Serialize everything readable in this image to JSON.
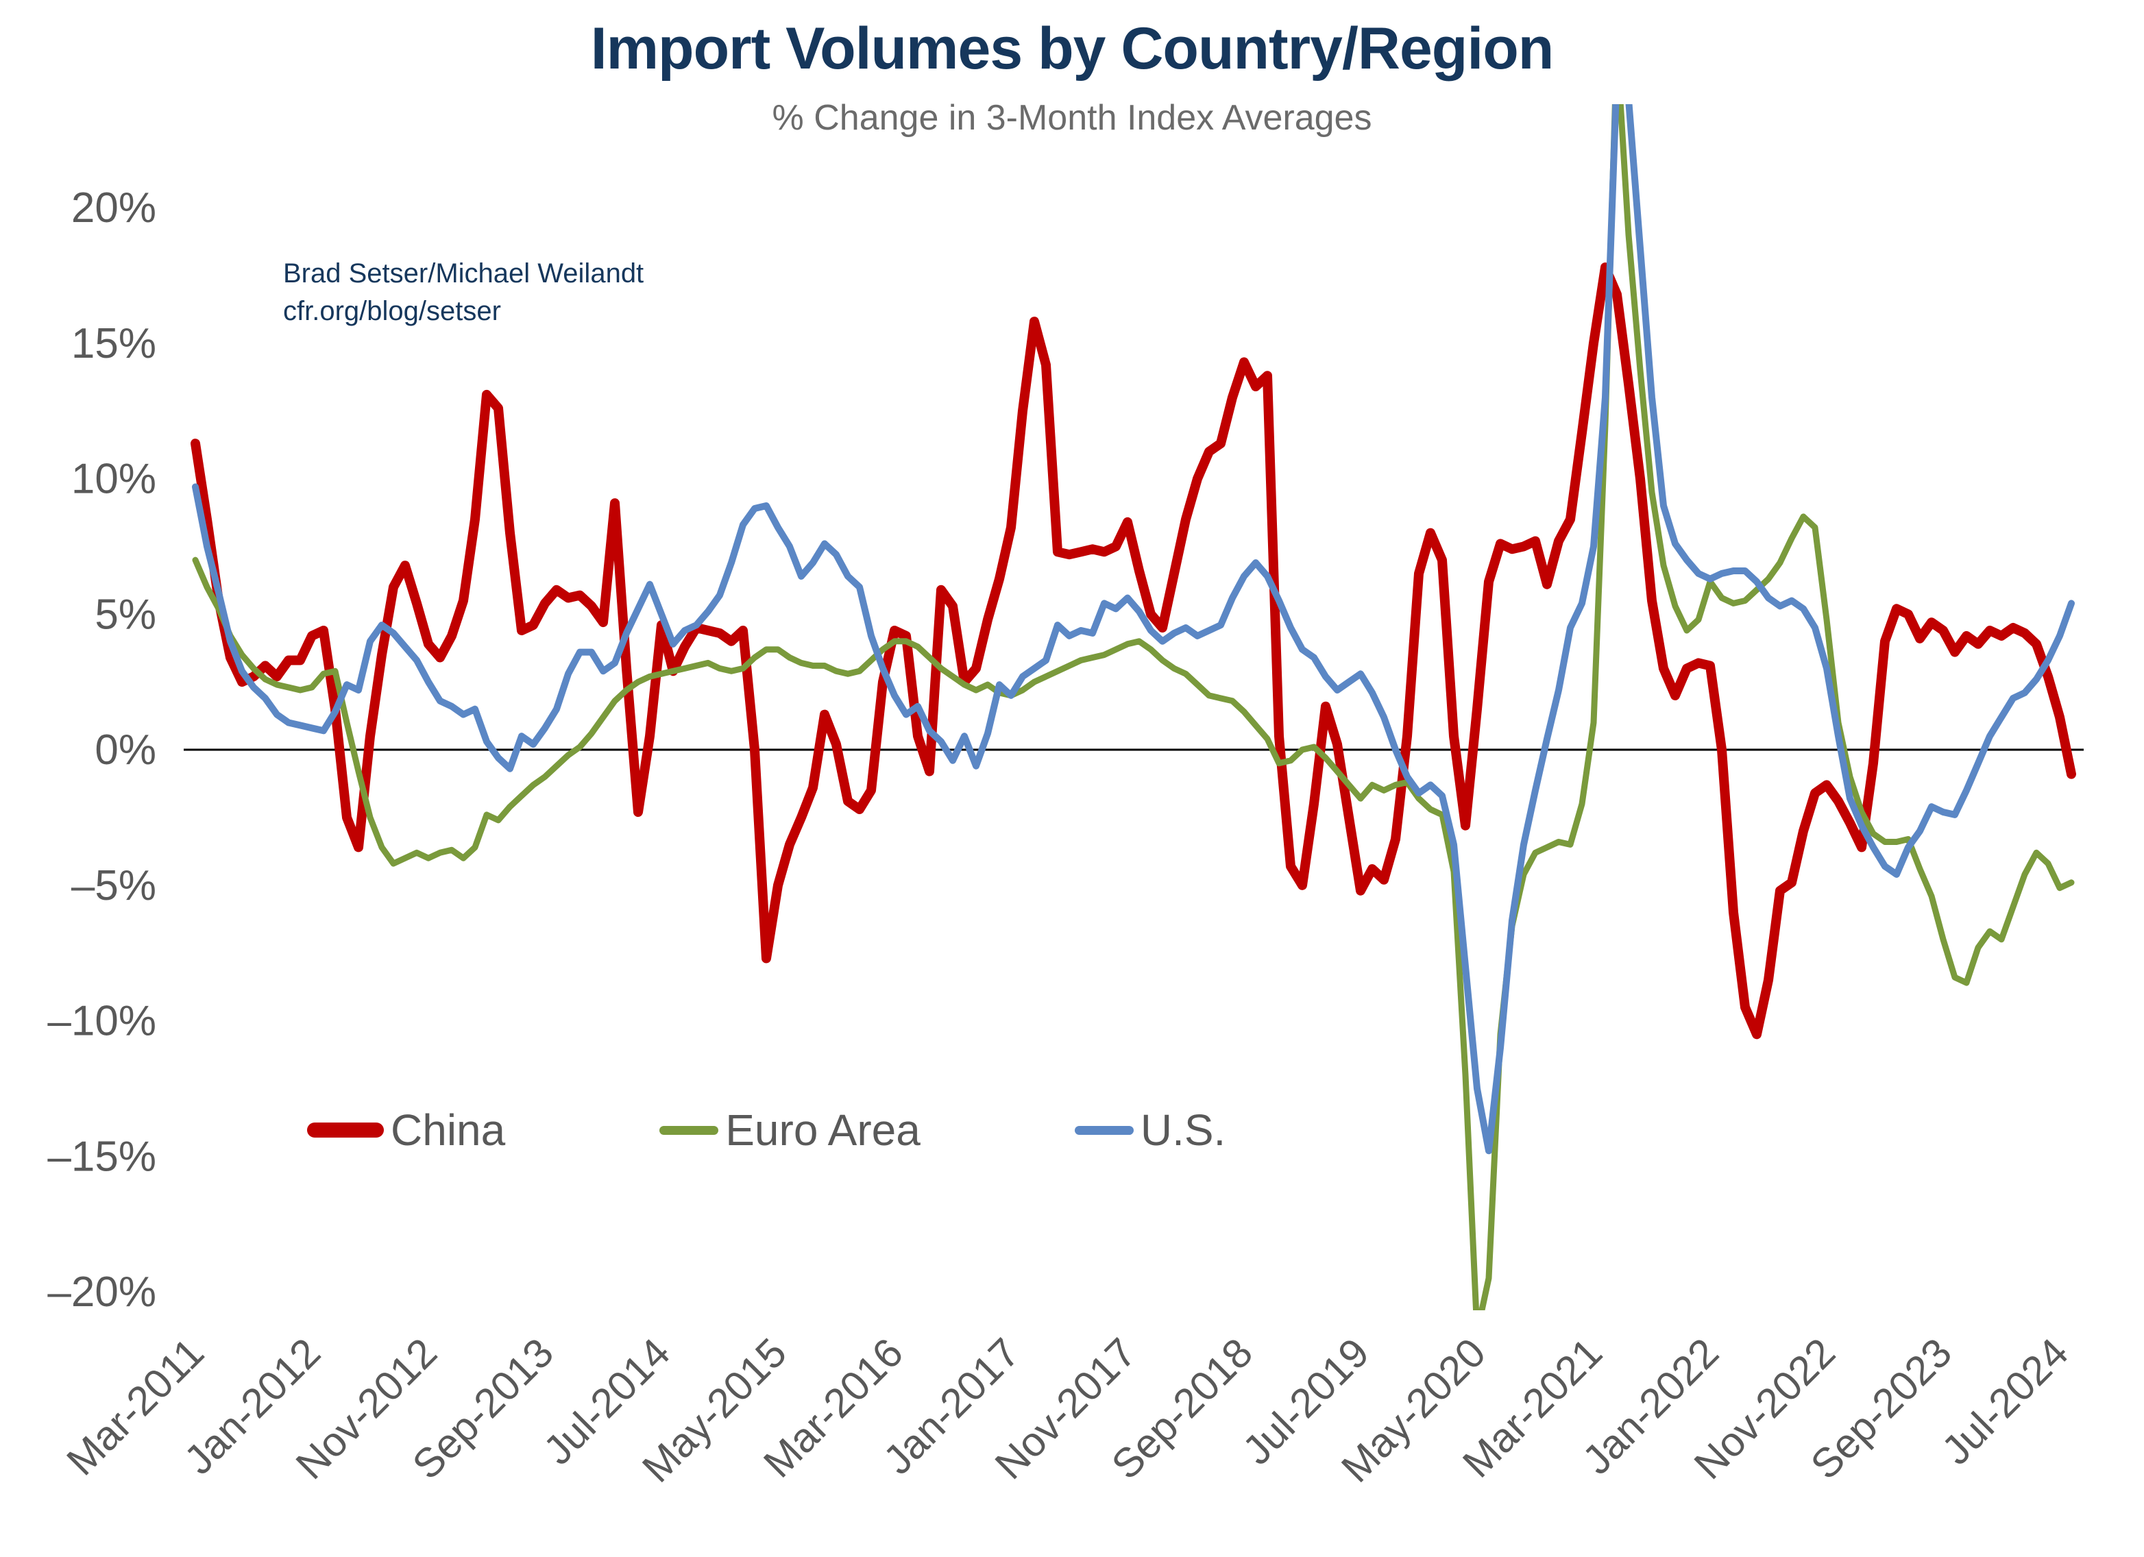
{
  "page": {
    "title": "Import Volumes by Country/Region",
    "subtitle": "% Change in 3-Month Index Averages",
    "annotation_line1": "Brad Setser/Michael Weilandt",
    "annotation_line2": "cfr.org/blog/setser"
  },
  "colors": {
    "china": "#C00000",
    "euro_area": "#7A9A3C",
    "us": "#5B87C5",
    "title_navy": "#16375C",
    "axis_text_gray": "#595959",
    "zero_axis": "#000000"
  },
  "chart_data": {
    "type": "line",
    "title": "Import Volumes by Country/Region",
    "subtitle": "% Change in 3-Month Index Averages",
    "x_start": "Mar-2011",
    "x_end": "Aug-2024",
    "frequency": "monthly",
    "ylim": [
      -20,
      20
    ],
    "y_tick_step": 5,
    "grid": false,
    "zero_axis": true,
    "legend_position": "inside-lower-left",
    "clip_note": "U.S. and Euro Area peaks in Apr-Jun 2021 and the Euro Area trough in May 2020 extend beyond the plotted axis range and are clipped",
    "y_ticks": [
      {
        "label": "20%",
        "v": 20
      },
      {
        "label": "15%",
        "v": 15
      },
      {
        "label": "10%",
        "v": 10
      },
      {
        "label": "5%",
        "v": 5
      },
      {
        "label": "0%",
        "v": 0
      },
      {
        "label": "–5%",
        "v": -5
      },
      {
        "label": "–10%",
        "v": -10
      },
      {
        "label": "–15%",
        "v": -15
      },
      {
        "label": "–20%",
        "v": -20
      }
    ],
    "x_ticks": [
      {
        "label": "Mar-2011",
        "i": 0
      },
      {
        "label": "Jan-2012",
        "i": 10
      },
      {
        "label": "Nov-2012",
        "i": 20
      },
      {
        "label": "Sep-2013",
        "i": 30
      },
      {
        "label": "Jul-2014",
        "i": 40
      },
      {
        "label": "May-2015",
        "i": 50
      },
      {
        "label": "Mar-2016",
        "i": 60
      },
      {
        "label": "Jan-2017",
        "i": 70
      },
      {
        "label": "Nov-2017",
        "i": 80
      },
      {
        "label": "Sep-2018",
        "i": 90
      },
      {
        "label": "Jul-2019",
        "i": 100
      },
      {
        "label": "May-2020",
        "i": 110
      },
      {
        "label": "Mar-2021",
        "i": 120
      },
      {
        "label": "Jan-2022",
        "i": 130
      },
      {
        "label": "Nov-2022",
        "i": 140
      },
      {
        "label": "Sep-2023",
        "i": 150
      },
      {
        "label": "Jul-2024",
        "i": 160
      }
    ],
    "series": [
      {
        "name": "China",
        "color": "#C00000",
        "width": 14,
        "values": [
          11.3,
          8.5,
          5.5,
          3.4,
          2.5,
          2.7,
          3.1,
          2.7,
          3.3,
          3.3,
          4.2,
          4.4,
          1.5,
          -2.5,
          -3.6,
          0.5,
          3.5,
          6.0,
          6.8,
          5.4,
          3.9,
          3.4,
          4.2,
          5.5,
          8.5,
          13.1,
          12.6,
          8.0,
          4.4,
          4.6,
          5.4,
          5.9,
          5.6,
          5.7,
          5.3,
          4.7,
          9.1,
          3.0,
          -2.3,
          0.5,
          4.6,
          2.9,
          3.8,
          4.5,
          4.4,
          4.3,
          4.0,
          4.4,
          0.0,
          -7.7,
          -5.0,
          -3.5,
          -2.5,
          -1.4,
          1.3,
          0.2,
          -1.9,
          -2.2,
          -1.5,
          2.5,
          4.4,
          4.2,
          0.5,
          -0.8,
          5.9,
          5.3,
          2.5,
          3.0,
          4.8,
          6.3,
          8.2,
          12.5,
          15.8,
          14.2,
          7.3,
          7.2,
          7.3,
          7.4,
          7.3,
          7.5,
          8.4,
          6.6,
          5.0,
          4.5,
          6.5,
          8.5,
          10.0,
          11.0,
          11.3,
          13.0,
          14.3,
          13.4,
          13.8,
          0.5,
          -4.3,
          -5.0,
          -2.0,
          1.6,
          0.2,
          -2.5,
          -5.2,
          -4.4,
          -4.8,
          -3.3,
          0.5,
          6.5,
          8.0,
          7.0,
          0.5,
          -2.8,
          1.5,
          6.2,
          7.6,
          7.4,
          7.5,
          7.7,
          6.1,
          7.7,
          8.5,
          11.7,
          15.0,
          17.8,
          16.8,
          13.5,
          10.0,
          5.5,
          3.0,
          2.0,
          3.0,
          3.2,
          3.1,
          0.0,
          -6.0,
          -9.5,
          -10.5,
          -8.5,
          -5.2,
          -4.9,
          -3.0,
          -1.6,
          -1.3,
          -1.9,
          -2.7,
          -3.6,
          -0.5,
          4.0,
          5.2,
          5.0,
          4.1,
          4.7,
          4.4,
          3.6,
          4.2,
          3.9,
          4.4,
          4.2,
          4.5,
          4.3,
          3.9,
          2.7,
          1.2,
          -0.9
        ]
      },
      {
        "name": "Euro Area",
        "color": "#7A9A3C",
        "width": 9,
        "values": [
          7.0,
          6.0,
          5.2,
          4.2,
          3.5,
          3.0,
          2.6,
          2.4,
          2.3,
          2.2,
          2.3,
          2.8,
          2.9,
          1.0,
          -0.8,
          -2.5,
          -3.6,
          -4.2,
          -4.0,
          -3.8,
          -4.0,
          -3.8,
          -3.7,
          -4.0,
          -3.6,
          -2.4,
          -2.6,
          -2.1,
          -1.7,
          -1.3,
          -1.0,
          -0.6,
          -0.2,
          0.1,
          0.6,
          1.2,
          1.8,
          2.2,
          2.5,
          2.7,
          2.8,
          2.9,
          3.0,
          3.1,
          3.2,
          3.0,
          2.9,
          3.0,
          3.4,
          3.7,
          3.7,
          3.4,
          3.2,
          3.1,
          3.1,
          2.9,
          2.8,
          2.9,
          3.3,
          3.7,
          4.0,
          4.0,
          3.8,
          3.4,
          3.0,
          2.7,
          2.4,
          2.2,
          2.4,
          2.1,
          2.0,
          2.2,
          2.5,
          2.7,
          2.9,
          3.1,
          3.3,
          3.4,
          3.5,
          3.7,
          3.9,
          4.0,
          3.7,
          3.3,
          3.0,
          2.8,
          2.4,
          2.0,
          1.9,
          1.8,
          1.4,
          0.9,
          0.4,
          -0.5,
          -0.4,
          0.0,
          0.1,
          -0.3,
          -0.8,
          -1.3,
          -1.8,
          -1.3,
          -1.5,
          -1.3,
          -1.2,
          -1.8,
          -2.2,
          -2.4,
          -4.5,
          -12.0,
          -21.5,
          -19.5,
          -10.5,
          -6.5,
          -4.6,
          -3.8,
          -3.6,
          -3.4,
          -3.5,
          -2.0,
          1.0,
          12.0,
          26.0,
          19.0,
          14.0,
          9.5,
          6.8,
          5.3,
          4.4,
          4.8,
          6.2,
          5.6,
          5.4,
          5.5,
          5.9,
          6.3,
          6.9,
          7.8,
          8.6,
          8.2,
          4.8,
          1.0,
          -1.0,
          -2.3,
          -3.1,
          -3.4,
          -3.4,
          -3.3,
          -4.4,
          -5.4,
          -7.0,
          -8.4,
          -8.6,
          -7.3,
          -6.7,
          -7.0,
          -5.8,
          -4.6,
          -3.8,
          -4.2,
          -5.1,
          -4.9
        ]
      },
      {
        "name": "U.S.",
        "color": "#5B87C5",
        "width": 10,
        "values": [
          9.7,
          7.5,
          5.8,
          4.0,
          2.9,
          2.3,
          1.9,
          1.3,
          1.0,
          0.9,
          0.8,
          0.7,
          1.4,
          2.4,
          2.2,
          4.0,
          4.6,
          4.3,
          3.8,
          3.3,
          2.5,
          1.8,
          1.6,
          1.3,
          1.5,
          0.3,
          -0.3,
          -0.7,
          0.5,
          0.2,
          0.8,
          1.5,
          2.8,
          3.6,
          3.6,
          2.9,
          3.2,
          4.3,
          5.2,
          6.1,
          5.0,
          3.9,
          4.4,
          4.6,
          5.1,
          5.7,
          6.9,
          8.3,
          8.9,
          9.0,
          8.2,
          7.5,
          6.4,
          6.9,
          7.6,
          7.2,
          6.4,
          6.0,
          4.2,
          3.0,
          2.0,
          1.3,
          1.6,
          0.7,
          0.3,
          -0.4,
          0.5,
          -0.6,
          0.6,
          2.4,
          2.0,
          2.7,
          3.0,
          3.3,
          4.6,
          4.2,
          4.4,
          4.3,
          5.4,
          5.2,
          5.6,
          5.1,
          4.4,
          4.0,
          4.3,
          4.5,
          4.2,
          4.4,
          4.6,
          5.6,
          6.4,
          6.9,
          6.4,
          5.5,
          4.5,
          3.7,
          3.4,
          2.7,
          2.2,
          2.5,
          2.8,
          2.1,
          1.2,
          0.0,
          -1.0,
          -1.6,
          -1.3,
          -1.7,
          -3.5,
          -8.0,
          -12.5,
          -14.8,
          -11.0,
          -6.3,
          -3.5,
          -1.5,
          0.4,
          2.2,
          4.5,
          5.4,
          7.5,
          13.0,
          25.0,
          24.0,
          18.5,
          13.0,
          9.0,
          7.6,
          7.0,
          6.5,
          6.3,
          6.5,
          6.6,
          6.6,
          6.2,
          5.6,
          5.3,
          5.5,
          5.2,
          4.5,
          3.0,
          0.5,
          -1.8,
          -2.8,
          -3.6,
          -4.3,
          -4.6,
          -3.6,
          -3.0,
          -2.1,
          -2.3,
          -2.4,
          -1.5,
          -0.5,
          0.5,
          1.2,
          1.9,
          2.1,
          2.6,
          3.3,
          4.2,
          5.4
        ]
      }
    ]
  }
}
